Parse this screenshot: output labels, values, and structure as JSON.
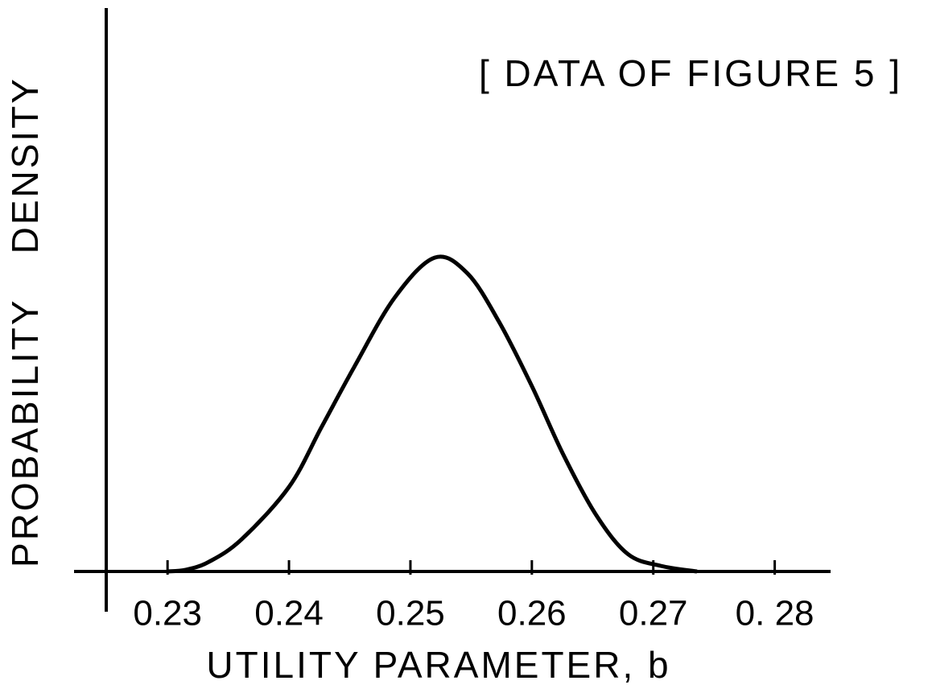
{
  "chart_data": {
    "type": "line",
    "annotation": "[ DATA OF FIGURE 5 ]",
    "xlabel": "UTILITY PARAMETER, b",
    "ylabel": "PROBABILITY DENSITY",
    "x": [
      0.23,
      0.2315,
      0.2334,
      0.2361,
      0.24,
      0.2427,
      0.2454,
      0.2487,
      0.252,
      0.2547,
      0.2573,
      0.26,
      0.2626,
      0.2653,
      0.2679,
      0.2706,
      0.2736
    ],
    "series": [
      {
        "color": "#000000",
        "values": [
          0,
          0.003,
          0.017,
          0.057,
          0.15,
          0.257,
          0.364,
          0.486,
          0.557,
          0.529,
          0.443,
          0.329,
          0.207,
          0.1,
          0.031,
          0.01,
          0
        ]
      }
    ],
    "xlim": [
      0.2223,
      0.2846
    ],
    "xticks": [
      0.23,
      0.24,
      0.25,
      0.26,
      0.27,
      {
        "value": 0.28,
        "label": "0. 28"
      }
    ],
    "ylim": [
      0,
      1
    ]
  }
}
